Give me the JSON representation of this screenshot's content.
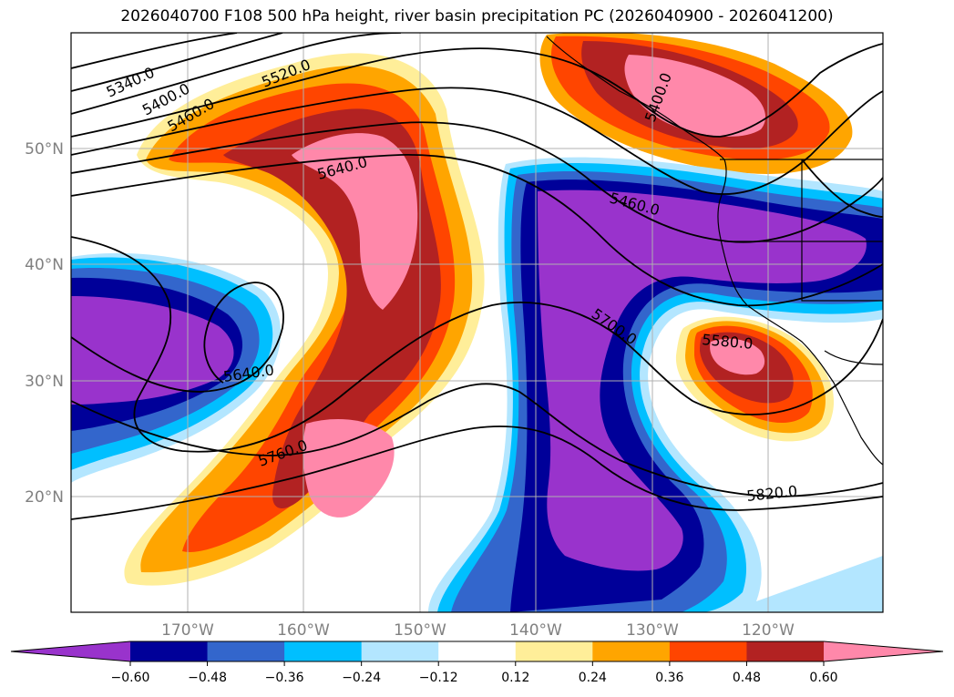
{
  "title": "2026040700 F108 500 hPa height, river basin precipitation PC (2026040900 - 2026041200)",
  "axes": {
    "lat_labels": [
      "50°N",
      "40°N",
      "30°N",
      "20°N"
    ],
    "lon_labels": [
      "170°W",
      "160°W",
      "150°W",
      "140°W",
      "130°W",
      "120°W"
    ]
  },
  "contour_labels": [
    "5340.0",
    "5400.0",
    "5460.0",
    "5520.0",
    "5640.0",
    "5460.0",
    "5700.0",
    "5580.0",
    "5640.0",
    "5760.0",
    "5820.0",
    "5400.0"
  ],
  "colorbar": {
    "ticks": [
      "−0.60",
      "−0.48",
      "−0.36",
      "−0.24",
      "−0.12",
      "0.12",
      "0.24",
      "0.36",
      "0.48",
      "0.60"
    ],
    "colors": [
      "#9933cc",
      "#000099",
      "#3366cc",
      "#00bfff",
      "#b3e6ff",
      "#ffffff",
      "#ffee99",
      "#ffa500",
      "#ff4500",
      "#b22222",
      "#ff88aa"
    ]
  }
}
